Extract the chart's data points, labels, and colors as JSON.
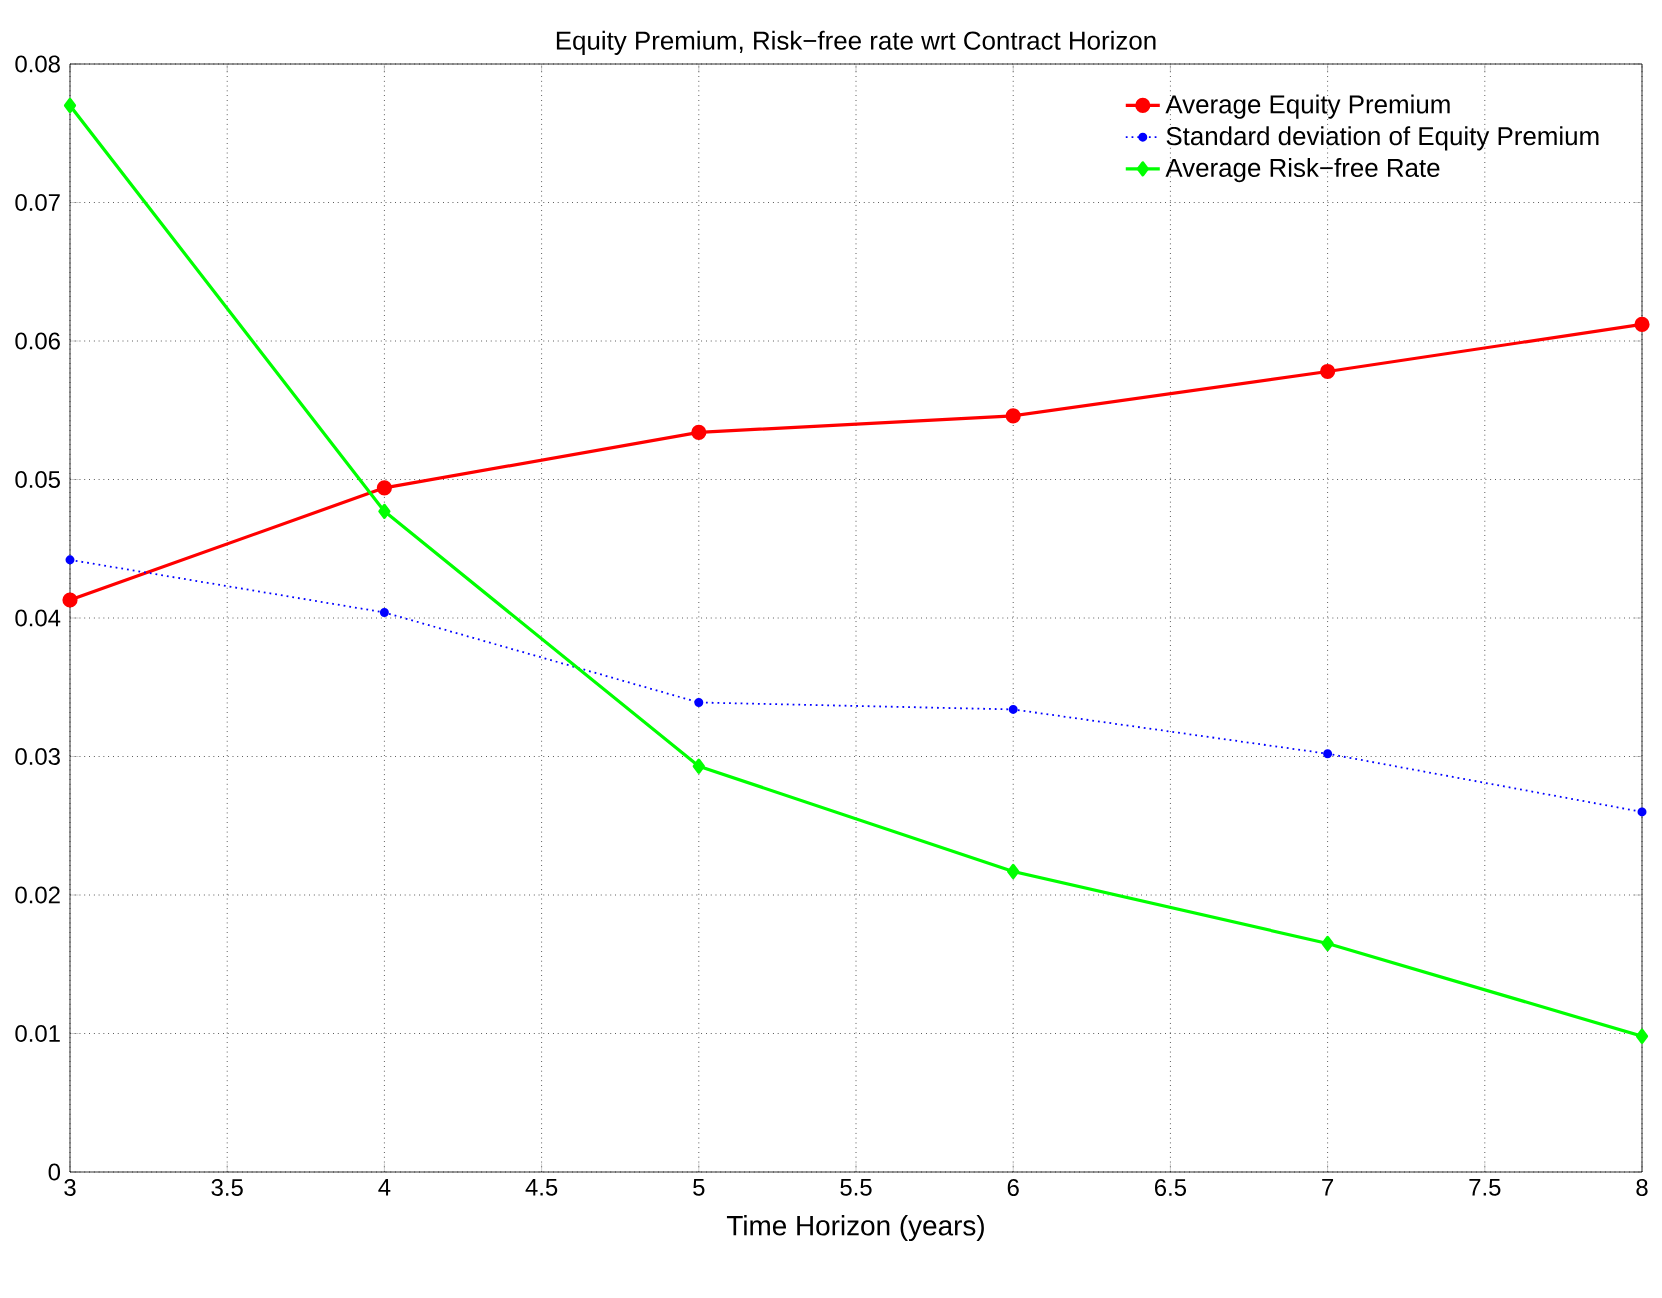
{
  "chart_data": {
    "type": "line",
    "title": "Equity Premium, Risk−free rate wrt Contract Horizon",
    "xlabel": "Time Horizon (years)",
    "x": [
      3,
      4,
      5,
      6,
      7,
      8
    ],
    "series": [
      {
        "name": "Average Equity Premium",
        "color": "#ff0000",
        "marker": "circle",
        "line_style": "solid",
        "values": [
          0.0413,
          0.0494,
          0.0534,
          0.0546,
          0.0578,
          0.0612
        ]
      },
      {
        "name": "Standard deviation of Equity Premium",
        "color": "#0000ff",
        "marker": "circle",
        "line_style": "dotted",
        "values": [
          0.0442,
          0.0404,
          0.0339,
          0.0334,
          0.0302,
          0.026
        ]
      },
      {
        "name": "Average Risk−free Rate",
        "color": "#00ff00",
        "marker": "diamond",
        "line_style": "solid",
        "values": [
          0.077,
          0.0477,
          0.0293,
          0.0217,
          0.0165,
          0.0098
        ]
      }
    ],
    "xlim": [
      3,
      8
    ],
    "ylim": [
      0,
      0.08
    ],
    "xticks": [
      3,
      3.5,
      4,
      4.5,
      5,
      5.5,
      6,
      6.5,
      7,
      7.5,
      8
    ],
    "yticks": [
      0,
      0.01,
      0.02,
      0.03,
      0.04,
      0.05,
      0.06,
      0.07,
      0.08
    ],
    "grid": true,
    "legend": "top right"
  }
}
